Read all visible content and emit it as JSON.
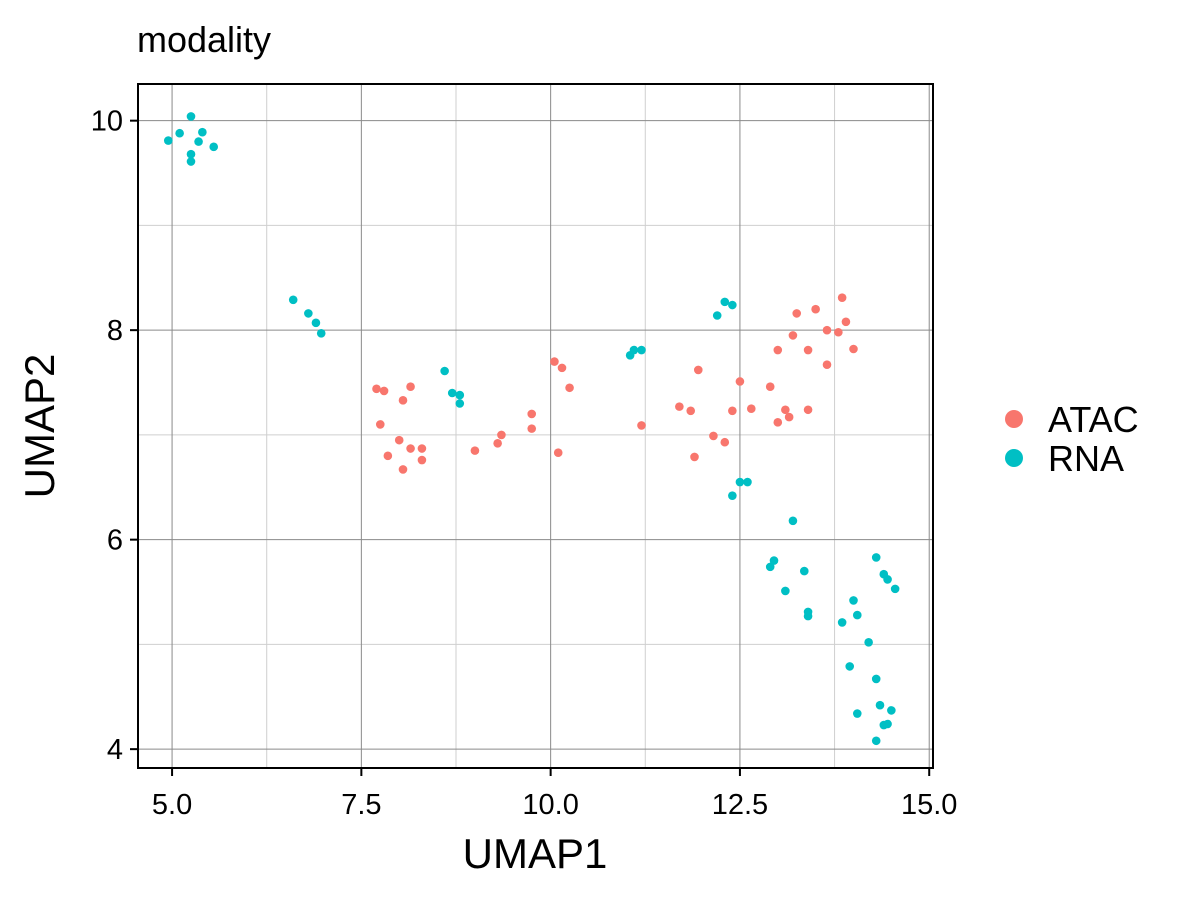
{
  "chart_data": {
    "type": "scatter",
    "title": "modality",
    "xlabel": "UMAP1",
    "ylabel": "UMAP2",
    "xlim": [
      4.55,
      15.05
    ],
    "ylim": [
      3.82,
      10.35
    ],
    "xticks": [
      5.0,
      7.5,
      10.0,
      12.5,
      15.0
    ],
    "xtick_labels": [
      "5.0",
      "7.5",
      "10.0",
      "12.5",
      "15.0"
    ],
    "yticks": [
      4,
      6,
      8,
      10
    ],
    "ytick_labels": [
      "4",
      "6",
      "8",
      "10"
    ],
    "x_minor_gridlines": [
      6.25,
      8.75,
      11.25,
      13.75
    ],
    "y_minor_gridlines": [
      5,
      7,
      9
    ],
    "grid": true,
    "legend_position": "right",
    "colors": {
      "ATAC": "#F8766D",
      "RNA": "#00BFC4"
    },
    "legend": [
      "ATAC",
      "RNA"
    ],
    "series": [
      {
        "name": "ATAC",
        "points": [
          [
            7.7,
            7.44
          ],
          [
            7.8,
            7.42
          ],
          [
            8.15,
            7.46
          ],
          [
            8.05,
            7.33
          ],
          [
            7.75,
            7.1
          ],
          [
            8.0,
            6.95
          ],
          [
            7.85,
            6.8
          ],
          [
            8.15,
            6.87
          ],
          [
            8.05,
            6.67
          ],
          [
            8.3,
            6.76
          ],
          [
            8.3,
            6.87
          ],
          [
            9.0,
            6.85
          ],
          [
            9.3,
            6.92
          ],
          [
            9.35,
            7.0
          ],
          [
            9.75,
            7.2
          ],
          [
            9.75,
            7.06
          ],
          [
            10.05,
            7.7
          ],
          [
            10.15,
            7.64
          ],
          [
            10.25,
            7.45
          ],
          [
            10.1,
            6.83
          ],
          [
            11.2,
            7.09
          ],
          [
            11.7,
            7.27
          ],
          [
            11.85,
            7.23
          ],
          [
            11.95,
            7.62
          ],
          [
            11.9,
            6.79
          ],
          [
            12.15,
            6.99
          ],
          [
            12.3,
            6.93
          ],
          [
            12.4,
            7.23
          ],
          [
            12.5,
            7.51
          ],
          [
            12.65,
            7.25
          ],
          [
            12.9,
            7.46
          ],
          [
            13.0,
            7.81
          ],
          [
            13.0,
            7.12
          ],
          [
            13.1,
            7.24
          ],
          [
            13.15,
            7.17
          ],
          [
            13.2,
            7.95
          ],
          [
            13.25,
            8.16
          ],
          [
            13.4,
            7.81
          ],
          [
            13.4,
            7.24
          ],
          [
            13.5,
            8.2
          ],
          [
            13.65,
            8.0
          ],
          [
            13.65,
            7.67
          ],
          [
            13.8,
            7.98
          ],
          [
            13.85,
            8.31
          ],
          [
            13.9,
            8.08
          ],
          [
            14.0,
            7.82
          ]
        ]
      },
      {
        "name": "RNA",
        "points": [
          [
            4.95,
            9.81
          ],
          [
            5.1,
            9.88
          ],
          [
            5.25,
            10.04
          ],
          [
            5.4,
            9.89
          ],
          [
            5.35,
            9.8
          ],
          [
            5.55,
            9.75
          ],
          [
            5.25,
            9.68
          ],
          [
            5.25,
            9.61
          ],
          [
            6.6,
            8.29
          ],
          [
            6.8,
            8.16
          ],
          [
            6.9,
            8.07
          ],
          [
            6.97,
            7.97
          ],
          [
            8.6,
            7.61
          ],
          [
            8.7,
            7.4
          ],
          [
            8.8,
            7.38
          ],
          [
            8.8,
            7.3
          ],
          [
            11.05,
            7.76
          ],
          [
            11.1,
            7.81
          ],
          [
            11.2,
            7.81
          ],
          [
            12.2,
            8.14
          ],
          [
            12.3,
            8.27
          ],
          [
            12.4,
            8.24
          ],
          [
            12.4,
            6.42
          ],
          [
            12.5,
            6.55
          ],
          [
            12.6,
            6.55
          ],
          [
            13.2,
            6.18
          ],
          [
            12.95,
            5.8
          ],
          [
            12.9,
            5.74
          ],
          [
            13.35,
            5.7
          ],
          [
            13.1,
            5.51
          ],
          [
            13.4,
            5.31
          ],
          [
            13.4,
            5.27
          ],
          [
            14.3,
            5.83
          ],
          [
            14.4,
            5.67
          ],
          [
            14.45,
            5.62
          ],
          [
            14.55,
            5.53
          ],
          [
            14.0,
            5.42
          ],
          [
            14.05,
            5.28
          ],
          [
            13.85,
            5.21
          ],
          [
            14.2,
            5.02
          ],
          [
            13.95,
            4.79
          ],
          [
            14.3,
            4.67
          ],
          [
            14.35,
            4.42
          ],
          [
            14.5,
            4.37
          ],
          [
            14.05,
            4.34
          ],
          [
            14.45,
            4.24
          ],
          [
            14.4,
            4.23
          ],
          [
            14.3,
            4.08
          ]
        ]
      }
    ]
  }
}
